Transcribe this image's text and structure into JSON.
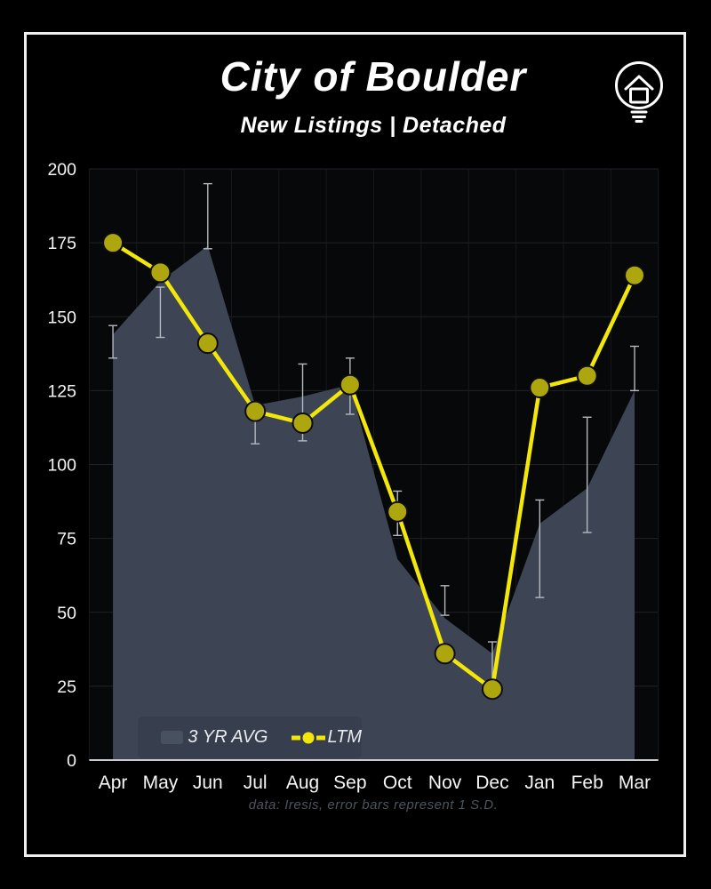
{
  "title": "City of Boulder",
  "subtitle": "New Listings | Detached",
  "footer_note": "data: Iresis,  error bars represent 1 S.D.",
  "legend": {
    "avg_label": "3 YR AVG",
    "ltm_label": "LTM"
  },
  "logo": {
    "name": "lightbulb-house-logo"
  },
  "colors": {
    "background": "#000000",
    "frame_border": "#f0f0f0",
    "area_fill": "#3d4454",
    "ltm_line": "#f2e60b",
    "marker_fill": "#aea60f",
    "marker_stroke": "#0d0d0d",
    "error_bar": "#b5b9c0",
    "axis_line": "#c9ccd0",
    "grid_h": "#1f2226",
    "grid_v": "#17191d",
    "plot_bg": "#070809",
    "tick_text": "#f5f5f5",
    "footer_text": "#4d545c"
  },
  "chart_data": {
    "type": "line",
    "title": "City of Boulder — New Listings | Detached",
    "categories": [
      "Apr",
      "May",
      "Jun",
      "Jul",
      "Aug",
      "Sep",
      "Oct",
      "Nov",
      "Dec",
      "Jan",
      "Feb",
      "Mar"
    ],
    "series": [
      {
        "name": "3 YR AVG",
        "type": "area",
        "values": [
          144,
          162,
          174,
          120,
          123,
          127,
          68,
          48,
          36,
          80,
          92,
          125
        ],
        "error_low": [
          136,
          143,
          173,
          107,
          108,
          117,
          76,
          49,
          27,
          55,
          77,
          125
        ],
        "error_high": [
          147,
          160,
          195,
          120,
          134,
          136,
          91,
          59,
          40,
          88,
          116,
          140
        ],
        "error_note": "error bars represent 1 S.D."
      },
      {
        "name": "LTM",
        "type": "line+markers",
        "values": [
          175,
          165,
          141,
          118,
          114,
          127,
          84,
          36,
          24,
          126,
          130,
          164
        ]
      }
    ],
    "ylim": [
      0,
      200
    ],
    "yticks": [
      0,
      25,
      50,
      75,
      100,
      125,
      150,
      175,
      200
    ],
    "grid": true,
    "legend_position": "bottom-left-inside"
  }
}
